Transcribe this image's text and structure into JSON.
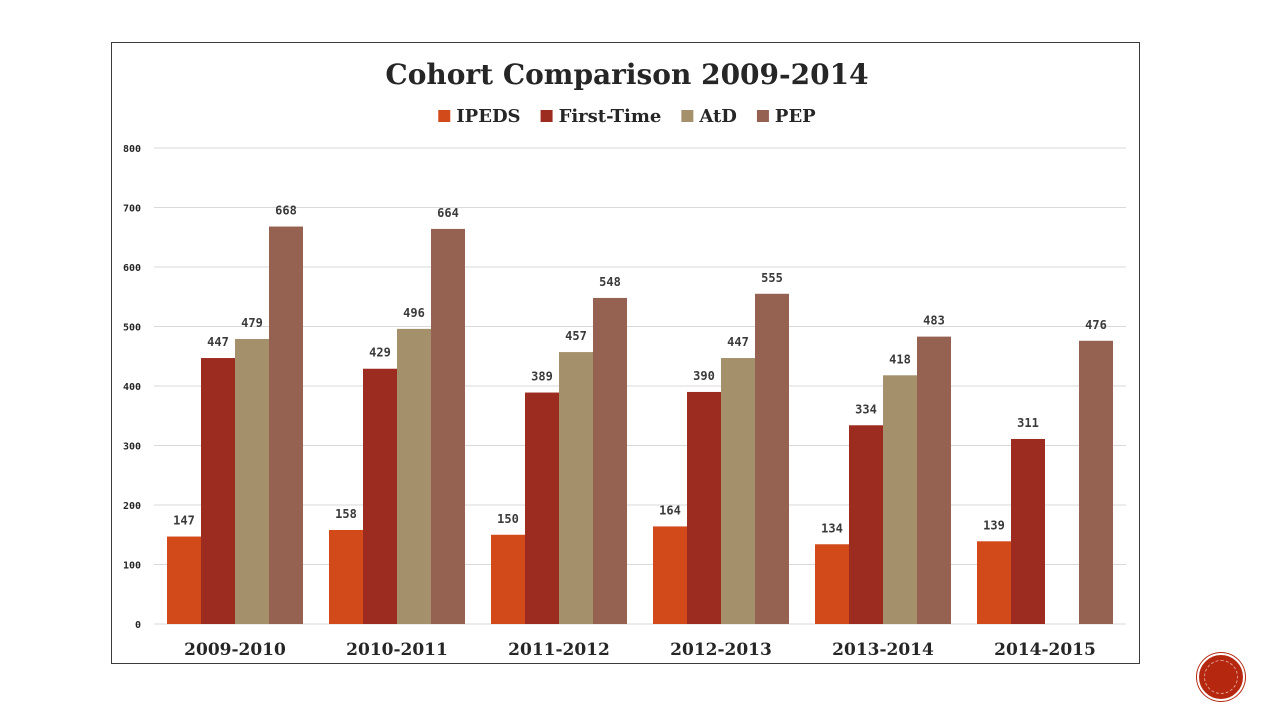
{
  "chart_data": {
    "type": "bar",
    "title": "Cohort Comparison 2009-2014",
    "categories": [
      "2009-2010",
      "2010-2011",
      "2011-2012",
      "2012-2013",
      "2013-2014",
      "2014-2015"
    ],
    "series": [
      {
        "name": "IPEDS",
        "color": "#d24a1a",
        "values": [
          147,
          158,
          150,
          164,
          134,
          139
        ]
      },
      {
        "name": "First-Time",
        "color": "#9b2c1f",
        "values": [
          447,
          429,
          389,
          390,
          334,
          311
        ]
      },
      {
        "name": "AtD",
        "color": "#a5906c",
        "values": [
          479,
          496,
          457,
          447,
          418,
          null
        ]
      },
      {
        "name": "PEP",
        "color": "#956252",
        "values": [
          668,
          664,
          548,
          555,
          483,
          476
        ]
      }
    ],
    "ylim": [
      0,
      800
    ],
    "yticks": [
      0,
      100,
      200,
      300,
      400,
      500,
      600,
      700,
      800
    ],
    "xlabel": "",
    "ylabel": "",
    "grid": true,
    "legend_position": "top-center",
    "data_labels": true
  }
}
